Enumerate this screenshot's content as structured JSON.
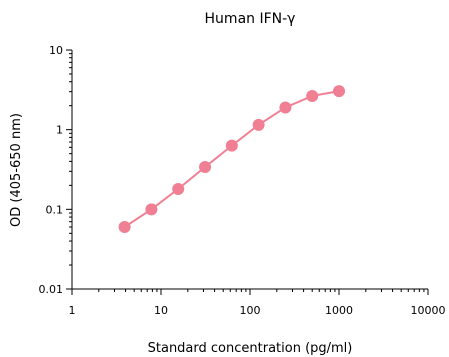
{
  "chart_data": {
    "type": "scatter",
    "title": "Human IFN-γ",
    "xlabel": "Standard concentration (pg/ml)",
    "ylabel": "OD (405-650 nm)",
    "x_scale": "log",
    "y_scale": "log",
    "xlim": [
      1,
      10000
    ],
    "ylim": [
      0.01,
      10
    ],
    "x_ticks": [
      {
        "value": 1,
        "label": "1"
      },
      {
        "value": 10,
        "label": "10"
      },
      {
        "value": 100,
        "label": "100"
      },
      {
        "value": 1000,
        "label": "1000"
      },
      {
        "value": 10000,
        "label": "10000"
      }
    ],
    "y_ticks": [
      {
        "value": 0.01,
        "label": "0.01"
      },
      {
        "value": 0.1,
        "label": "0.1"
      },
      {
        "value": 1,
        "label": "1"
      },
      {
        "value": 10,
        "label": "10"
      }
    ],
    "grid": false,
    "series": [
      {
        "color": "#f07f93",
        "points": [
          {
            "x": 3.9,
            "y": 0.06
          },
          {
            "x": 7.8,
            "y": 0.1
          },
          {
            "x": 15.6,
            "y": 0.18
          },
          {
            "x": 31.25,
            "y": 0.34
          },
          {
            "x": 62.5,
            "y": 0.63
          },
          {
            "x": 125,
            "y": 1.15
          },
          {
            "x": 250,
            "y": 1.9
          },
          {
            "x": 500,
            "y": 2.65
          },
          {
            "x": 1000,
            "y": 3.05
          }
        ]
      }
    ]
  }
}
